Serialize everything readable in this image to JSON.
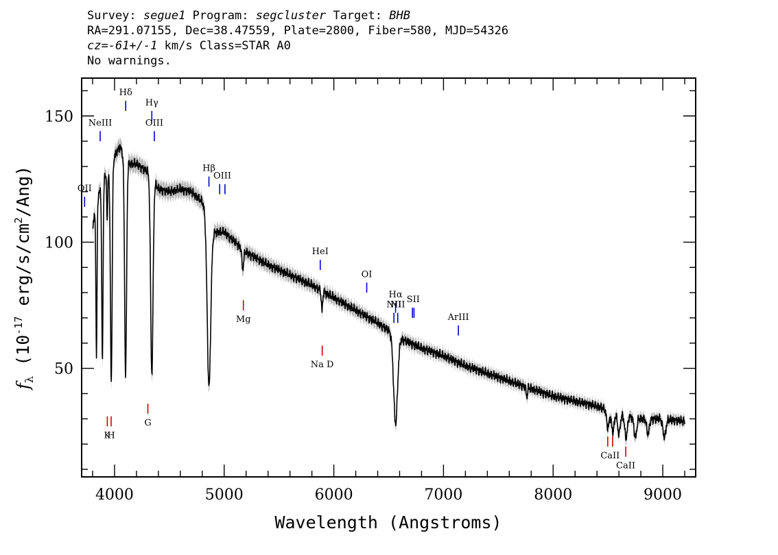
{
  "header": {
    "survey_label": "Survey:",
    "survey": "segue1",
    "program_label": "Program:",
    "program": "segcluster",
    "target_label": "Target:",
    "target": "BHB",
    "line2": "RA=291.07155, Dec=38.47559, Plate=2800, Fiber=580, MJD=54326",
    "cz_label": "cz=",
    "cz": "-61+/-1",
    "cz_unit": "km/s Class=STAR A0",
    "warnings": "No warnings."
  },
  "chart_data": {
    "type": "line",
    "title": "",
    "xlabel": "Wavelength (Angstroms)",
    "ylabel": "f_λ (10^-17 erg/s/cm^2/Ang)",
    "xlim": [
      3700,
      9300
    ],
    "ylim": [
      7,
      165
    ],
    "xticks": [
      4000,
      5000,
      6000,
      7000,
      8000,
      9000
    ],
    "yticks": [
      50,
      100,
      150
    ],
    "grid": false,
    "line_color": "#000000",
    "error_color": "#b4b4b4",
    "emission_color": "#0000cc",
    "absorption_color": "#cc0000",
    "continuum": [
      [
        3800,
        106
      ],
      [
        3850,
        118
      ],
      [
        3900,
        125
      ],
      [
        3950,
        128
      ],
      [
        4000,
        134
      ],
      [
        4050,
        138
      ],
      [
        4100,
        132
      ],
      [
        4150,
        131
      ],
      [
        4200,
        131
      ],
      [
        4300,
        128
      ],
      [
        4350,
        125
      ],
      [
        4400,
        121
      ],
      [
        4500,
        120
      ],
      [
        4600,
        121
      ],
      [
        4700,
        120
      ],
      [
        4800,
        116
      ],
      [
        4900,
        104
      ],
      [
        5000,
        104
      ],
      [
        5100,
        100
      ],
      [
        5200,
        96
      ],
      [
        5400,
        91
      ],
      [
        5600,
        87
      ],
      [
        5800,
        83
      ],
      [
        6000,
        78
      ],
      [
        6200,
        73
      ],
      [
        6400,
        68
      ],
      [
        6600,
        62
      ],
      [
        6800,
        58
      ],
      [
        7000,
        55
      ],
      [
        7200,
        51
      ],
      [
        7400,
        48
      ],
      [
        7600,
        45
      ],
      [
        7800,
        42
      ],
      [
        8000,
        39
      ],
      [
        8200,
        37
      ],
      [
        8400,
        35
      ],
      [
        8600,
        32
      ],
      [
        8800,
        30
      ],
      [
        9000,
        30
      ],
      [
        9200,
        29
      ]
    ],
    "absorption_features": [
      {
        "center": 3835,
        "width": 5,
        "depth": 60
      },
      {
        "center": 3889,
        "width": 6,
        "depth": 70
      },
      {
        "center": 3933,
        "width": 4,
        "depth": 20
      },
      {
        "center": 3970,
        "width": 8,
        "depth": 85
      },
      {
        "center": 4101,
        "width": 9,
        "depth": 85
      },
      {
        "center": 4340,
        "width": 11,
        "depth": 78
      },
      {
        "center": 4861,
        "width": 16,
        "depth": 66
      },
      {
        "center": 5170,
        "width": 8,
        "depth": 8
      },
      {
        "center": 5892,
        "width": 6,
        "depth": 8
      },
      {
        "center": 6563,
        "width": 18,
        "depth": 35
      },
      {
        "center": 7760,
        "width": 6,
        "depth": 4
      },
      {
        "center": 8500,
        "width": 12,
        "depth": 7
      },
      {
        "center": 8545,
        "width": 12,
        "depth": 8
      },
      {
        "center": 8600,
        "width": 12,
        "depth": 8
      },
      {
        "center": 8665,
        "width": 12,
        "depth": 9
      },
      {
        "center": 8750,
        "width": 12,
        "depth": 8
      },
      {
        "center": 8865,
        "width": 12,
        "depth": 6
      },
      {
        "center": 9015,
        "width": 14,
        "depth": 7
      }
    ],
    "emission_lines": [
      {
        "label": "OII",
        "wavelength": 3727,
        "y_low": 114,
        "y_high": 118
      },
      {
        "label": "NeIII",
        "wavelength": 3869,
        "y_low": 140,
        "y_high": 144
      },
      {
        "label": "Hδ",
        "wavelength": 4102,
        "y_low": 152,
        "y_high": 156
      },
      {
        "label": "Hγ",
        "wavelength": 4340,
        "y_low": 148,
        "y_high": 152
      },
      {
        "label": "OIII",
        "wavelength": 4363,
        "y_low": 140,
        "y_high": 144
      },
      {
        "label": "Hβ",
        "wavelength": 4861,
        "y_low": 122,
        "y_high": 126
      },
      {
        "label": "OIII",
        "wavelength": 4959,
        "y_low": 119,
        "y_high": 123
      },
      {
        "label": "OIII",
        "wavelength": 5007,
        "y_low": 119,
        "y_high": 123
      },
      {
        "label": "HeI",
        "wavelength": 5876,
        "y_low": 89,
        "y_high": 93
      },
      {
        "label": "OI",
        "wavelength": 6300,
        "y_low": 80,
        "y_high": 84
      },
      {
        "label": "NII",
        "wavelength": 6548,
        "y_low": 68,
        "y_high": 72
      },
      {
        "label": "Hα",
        "wavelength": 6563,
        "y_low": 72,
        "y_high": 76
      },
      {
        "label": "NII",
        "wavelength": 6583,
        "y_low": 68,
        "y_high": 72
      },
      {
        "label": "SII",
        "wavelength": 6717,
        "y_low": 70,
        "y_high": 74
      },
      {
        "label": "SII",
        "wavelength": 6731,
        "y_low": 70,
        "y_high": 74
      },
      {
        "label": "ArIII",
        "wavelength": 7136,
        "y_low": 63,
        "y_high": 67
      }
    ],
    "absorption_lines": [
      {
        "label": "K",
        "wavelength": 3934,
        "y_low": 27,
        "y_high": 31
      },
      {
        "label": "H",
        "wavelength": 3969,
        "y_low": 27,
        "y_high": 31
      },
      {
        "label": "G",
        "wavelength": 4304,
        "y_low": 32,
        "y_high": 36
      },
      {
        "label": "Mg",
        "wavelength": 5175,
        "y_low": 73,
        "y_high": 77
      },
      {
        "label": "Na D",
        "wavelength": 5894,
        "y_low": 55,
        "y_high": 59
      },
      {
        "label": "CaII",
        "wavelength": 8498,
        "y_low": 19,
        "y_high": 23
      },
      {
        "label": "CaII",
        "wavelength": 8542,
        "y_low": 19,
        "y_high": 23
      },
      {
        "label": "CaII",
        "wavelength": 8662,
        "y_low": 15,
        "y_high": 19
      }
    ]
  }
}
